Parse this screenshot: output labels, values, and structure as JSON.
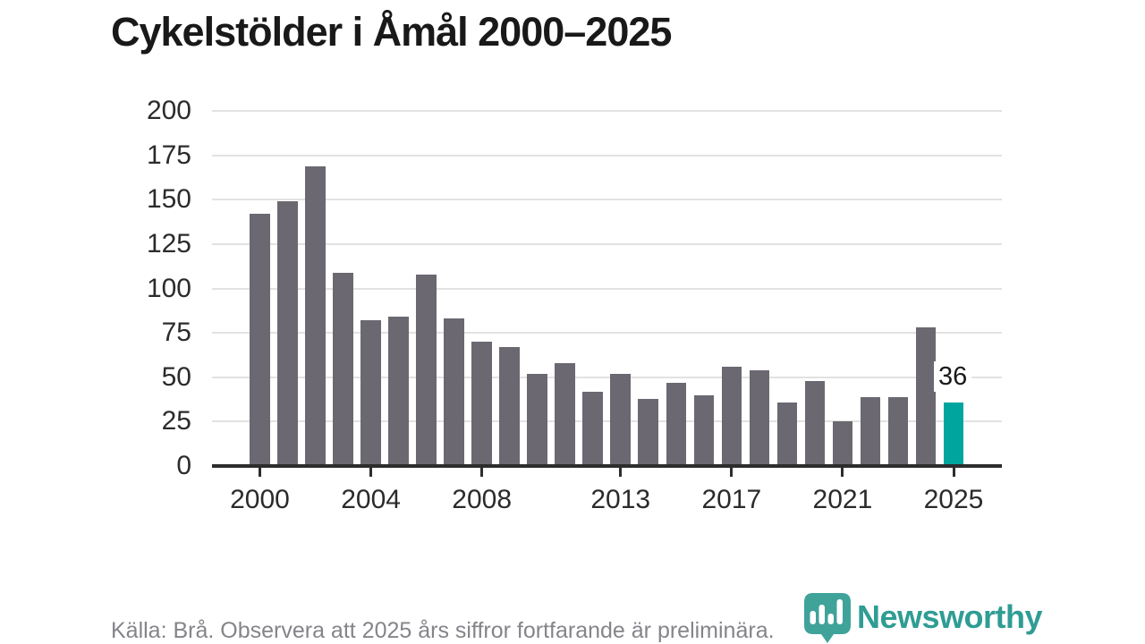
{
  "title": "Cykelstölder i Åmål 2000–2025",
  "chart_data": {
    "type": "bar",
    "title": "Cykelstölder i Åmål 2000–2025",
    "categories": [
      2000,
      2001,
      2002,
      2003,
      2004,
      2005,
      2006,
      2007,
      2008,
      2009,
      2010,
      2011,
      2012,
      2013,
      2014,
      2015,
      2016,
      2017,
      2018,
      2019,
      2020,
      2021,
      2022,
      2023,
      2024,
      2025
    ],
    "values": [
      142,
      149,
      169,
      109,
      82,
      84,
      108,
      83,
      70,
      67,
      52,
      58,
      42,
      52,
      38,
      47,
      40,
      56,
      54,
      36,
      48,
      25,
      39,
      39,
      78,
      36
    ],
    "xlabel": "",
    "ylabel": "",
    "ylim": [
      0,
      200
    ],
    "yticks": [
      0,
      25,
      50,
      75,
      100,
      125,
      150,
      175,
      200
    ],
    "xticks": [
      2000,
      2004,
      2008,
      2013,
      2017,
      2021,
      2025
    ],
    "grid": true,
    "legend": "none",
    "bar_color": "#6b6871",
    "highlight_index": 25,
    "highlight_color": "#00a69e",
    "annotation": {
      "index": 25,
      "year": 2025,
      "text": "36"
    }
  },
  "footer": {
    "source_text": "Källa: Brå. Observera att 2025 års siffror fortfarande är preliminära."
  },
  "branding": {
    "logo_text": "Newsworthy",
    "logo_text_color": "#2f9d94",
    "logo_icon_color": "#3fa39a",
    "logo_icon": "newsworthy-barchart-pin-icon"
  }
}
